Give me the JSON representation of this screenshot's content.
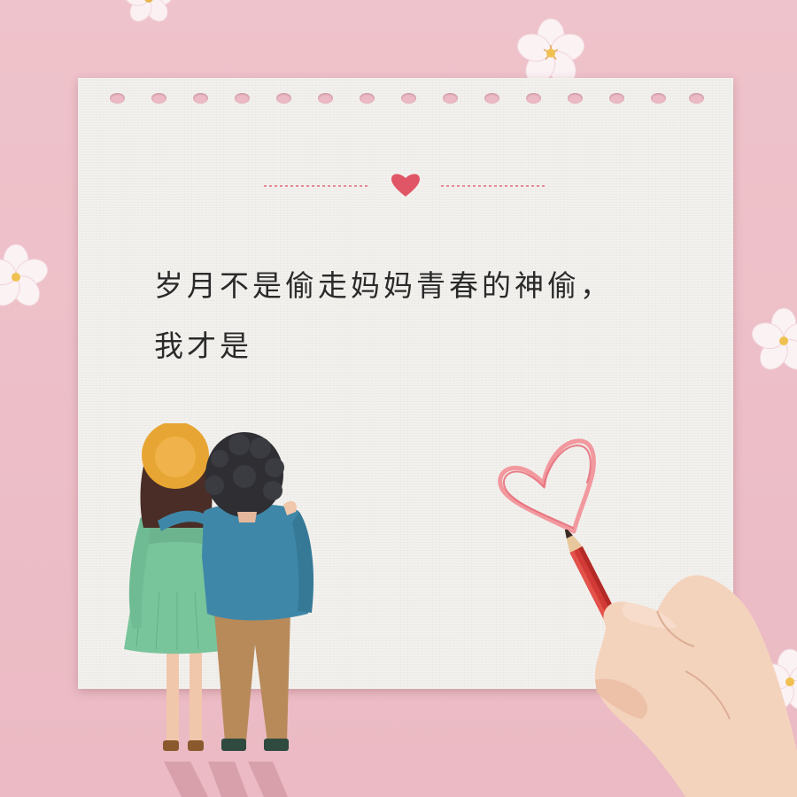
{
  "note": {
    "line1": "岁月不是偷走妈妈青春的神偷，",
    "line2": "我才是"
  },
  "colors": {
    "background": "#edbfc7",
    "paper": "#f3f1ee",
    "accent_heart": "#e05666",
    "drawn_heart": "#f07e86",
    "divider": "#e58a93"
  },
  "illustrations": [
    "cherry-blossom-icon",
    "heart-icon",
    "drawn-heart",
    "mother-daughter-illustration",
    "hand-with-pencil"
  ]
}
